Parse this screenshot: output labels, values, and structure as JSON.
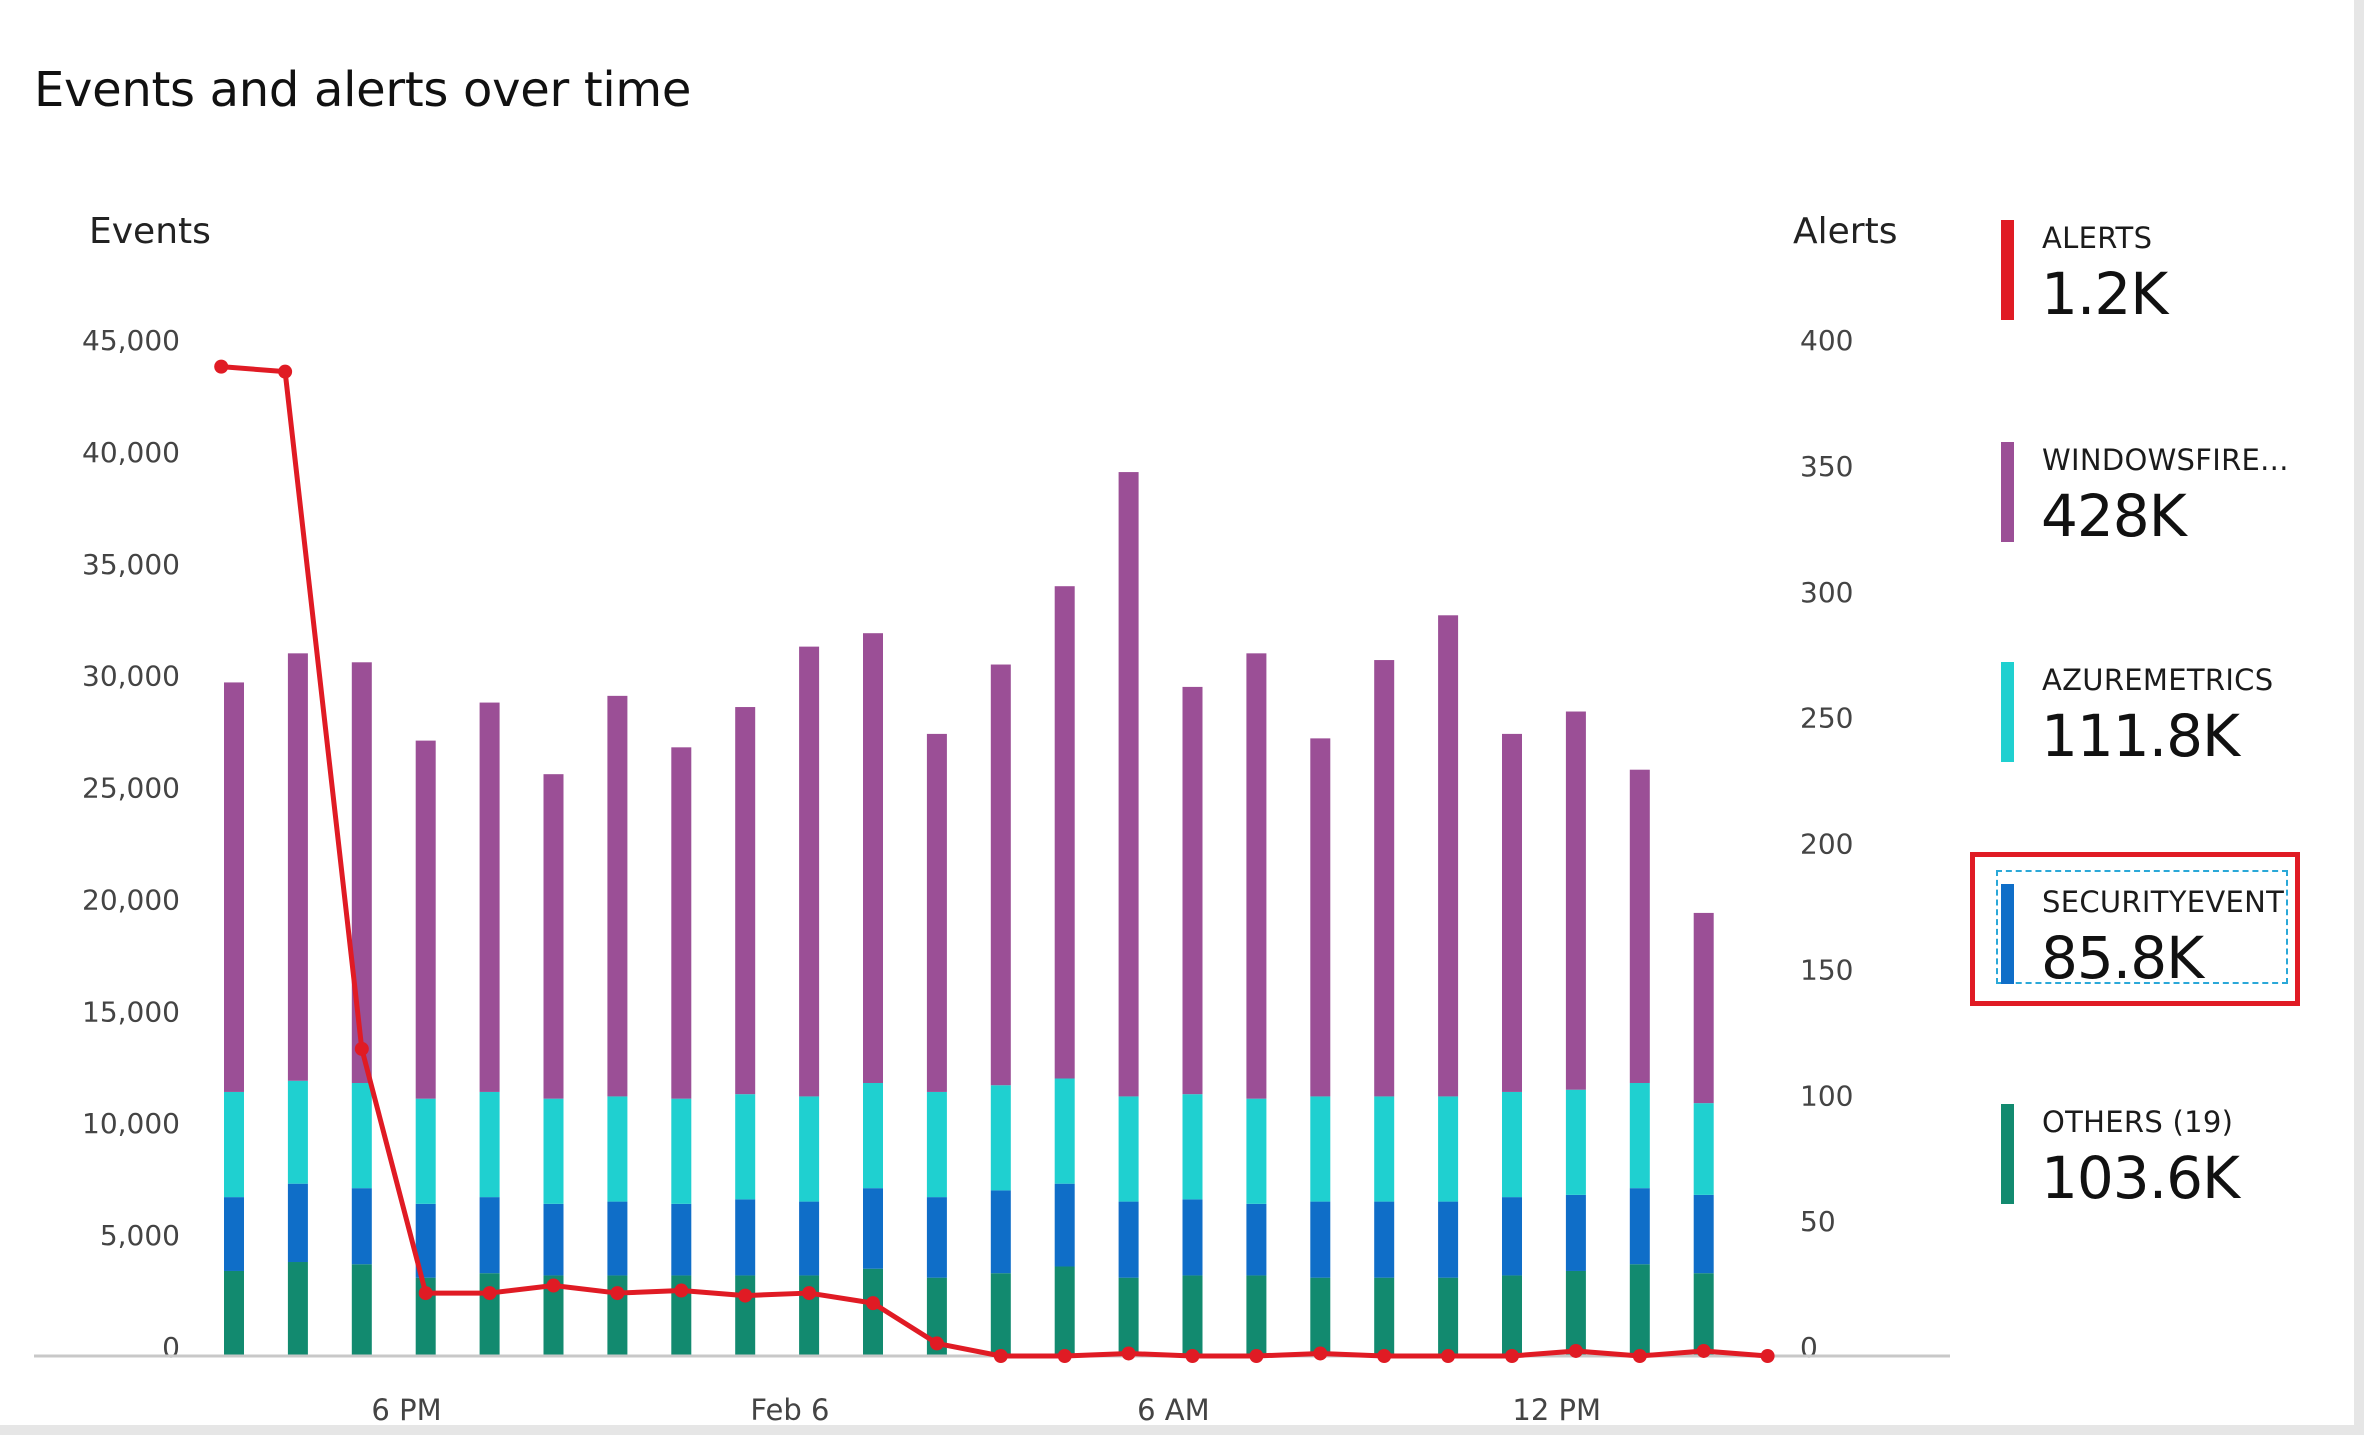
{
  "title": "Events and alerts over time",
  "colors": {
    "alerts": "#e01b24",
    "windowsfirewall": "#9b4f96",
    "azuremetrics": "#1fd0d0",
    "securityevent": "#0f6ec8",
    "others": "#128a6f",
    "axis_text": "#444444",
    "baseline": "#c8c8c8"
  },
  "legend": [
    {
      "key": "alerts",
      "label": "ALERTS",
      "value": "1.2K",
      "color": "#e01b24",
      "selected": false
    },
    {
      "key": "windowsfirewall",
      "label": "WINDOWSFIRE...",
      "value": "428K",
      "color": "#9b4f96",
      "selected": false
    },
    {
      "key": "azuremetrics",
      "label": "AZUREMETRICS",
      "value": "111.8K",
      "color": "#1fd0d0",
      "selected": false
    },
    {
      "key": "securityevent",
      "label": "SECURITYEVENT",
      "value": "85.8K",
      "color": "#0f6ec8",
      "selected": true
    },
    {
      "key": "others",
      "label": "OTHERS (19)",
      "value": "103.6K",
      "color": "#128a6f",
      "selected": false
    }
  ],
  "chart_data": {
    "type": "bar",
    "stacked": true,
    "ylabel": "Events",
    "y2label": "Alerts",
    "ylim": [
      0,
      45000
    ],
    "y2lim": [
      0,
      400
    ],
    "yticks": [
      0,
      5000,
      10000,
      15000,
      20000,
      25000,
      30000,
      35000,
      40000,
      45000
    ],
    "ytick_labels": [
      "0",
      "5,000",
      "10,000",
      "15,000",
      "20,000",
      "25,000",
      "30,000",
      "35,000",
      "40,000",
      "45,000"
    ],
    "y2ticks": [
      0,
      50,
      100,
      150,
      200,
      250,
      300,
      350,
      400
    ],
    "y2tick_labels": [
      "0",
      "50",
      "100",
      "150",
      "200",
      "250",
      "300",
      "350",
      "400"
    ],
    "xtick_labels": [
      {
        "label": "6 PM",
        "index": 2.7
      },
      {
        "label": "Feb 6",
        "index": 8.7
      },
      {
        "label": "6 AM",
        "index": 14.7
      },
      {
        "label": "12 PM",
        "index": 20.7
      }
    ],
    "bar_count": 24,
    "series": [
      {
        "name": "OTHERS (19)",
        "key": "others",
        "color": "#128a6f",
        "values": [
          3800,
          4200,
          4100,
          3500,
          3700,
          3600,
          3600,
          3600,
          3600,
          3600,
          3900,
          3500,
          3700,
          4000,
          3500,
          3600,
          3600,
          3500,
          3500,
          3500,
          3600,
          3800,
          4100,
          3700
        ]
      },
      {
        "name": "SECURITYEVENT",
        "key": "securityevent",
        "color": "#0f6ec8",
        "values": [
          3300,
          3500,
          3400,
          3300,
          3400,
          3200,
          3300,
          3200,
          3400,
          3300,
          3600,
          3600,
          3700,
          3700,
          3400,
          3400,
          3200,
          3400,
          3400,
          3400,
          3500,
          3400,
          3400,
          3500
        ]
      },
      {
        "name": "AZUREMETRICS",
        "key": "azuremetrics",
        "color": "#1fd0d0",
        "values": [
          4700,
          4600,
          4700,
          4700,
          4700,
          4700,
          4700,
          4700,
          4700,
          4700,
          4700,
          4700,
          4700,
          4700,
          4700,
          4700,
          4700,
          4700,
          4700,
          4700,
          4700,
          4700,
          4700,
          4100
        ]
      },
      {
        "name": "WINDOWSFIRE...",
        "key": "windowsfirewall",
        "color": "#9b4f96",
        "values": [
          18300,
          19100,
          18800,
          16000,
          17400,
          14500,
          17900,
          15700,
          17300,
          20100,
          20100,
          16000,
          18800,
          22000,
          27900,
          18200,
          19900,
          16000,
          19500,
          21500,
          16000,
          16900,
          14000,
          8500
        ]
      }
    ],
    "alerts_line": {
      "name": "ALERTS",
      "color": "#e01b24",
      "x_index": [
        -0.2,
        0.8,
        2.0,
        3.0,
        4.0,
        5.0,
        6.0,
        7.0,
        8.0,
        9.0,
        10.0,
        11.0,
        12.0,
        13.0,
        14.0,
        15.0,
        16.0,
        17.0,
        18.0,
        19.0,
        20.0,
        21.0,
        22.0,
        23.0,
        24.0
      ],
      "values": [
        393,
        391,
        122,
        25,
        25,
        28,
        25,
        26,
        24,
        25,
        21,
        5,
        0,
        0,
        1,
        0,
        0,
        1,
        0,
        0,
        0,
        2,
        0,
        2,
        0
      ]
    }
  }
}
